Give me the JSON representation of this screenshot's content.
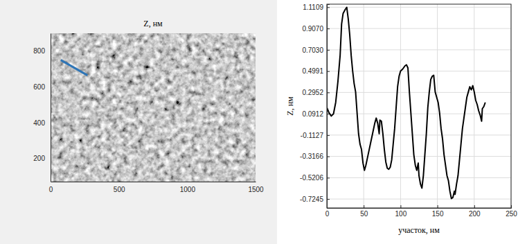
{
  "chart_data": [
    {
      "type": "image",
      "title": "Z, нм",
      "xlim": [
        0,
        1500
      ],
      "xticks": [
        0,
        500,
        1000,
        1500
      ],
      "ylim": [
        70,
        900
      ],
      "yticks": [
        200,
        400,
        600,
        800
      ],
      "series": [
        {
          "type": "line",
          "color": "#2e75b6",
          "x": [
            75,
            270
          ],
          "values": [
            750,
            665
          ]
        }
      ]
    },
    {
      "type": "line",
      "x_label": "участок, нм",
      "y_label": "Z, нм",
      "xlim": [
        0,
        250
      ],
      "xticks": [
        0,
        50,
        100,
        150,
        200,
        250
      ],
      "ylim": [
        -0.81,
        1.14
      ],
      "yticks": [
        -0.7245,
        -0.5206,
        -0.3166,
        -0.1127,
        0.0912,
        0.2952,
        0.4991,
        {
          "value": 0.703,
          "label": "0.7030"
        },
        {
          "value": 0.907,
          "label": "0.9070"
        },
        1.1109
      ],
      "grid": true,
      "x": [
        0,
        3,
        6,
        9,
        12,
        15,
        18,
        20,
        22,
        25,
        27,
        29,
        31,
        33,
        35,
        37,
        39,
        41,
        43,
        45,
        47,
        49,
        51,
        53,
        56,
        59,
        62,
        65,
        67,
        69,
        71,
        72,
        74,
        76,
        78,
        80,
        82,
        84,
        86,
        88,
        90,
        92,
        94,
        96,
        98,
        100,
        103,
        106,
        108,
        110,
        112,
        114,
        116,
        118,
        120,
        122,
        124,
        125,
        127,
        129,
        131,
        133,
        135,
        137,
        139,
        141,
        143,
        145,
        147,
        149,
        151,
        153,
        155,
        157,
        159,
        161,
        163,
        165,
        167,
        169,
        171,
        173,
        174,
        176,
        178,
        180,
        182,
        184,
        186,
        188,
        190,
        192,
        194,
        196,
        198,
        200,
        202,
        204,
        206,
        208,
        210,
        211,
        213,
        215
      ],
      "series": [
        {
          "color": "#000000",
          "values": [
            0.15,
            0.1,
            0.07,
            0.09,
            0.2,
            0.4,
            0.65,
            0.95,
            1.05,
            1.09,
            1.11,
            1.0,
            0.85,
            0.65,
            0.5,
            0.38,
            0.3,
            0.1,
            -0.1,
            -0.2,
            -0.25,
            -0.38,
            -0.45,
            -0.4,
            -0.3,
            -0.2,
            -0.1,
            0.0,
            0.05,
            0.0,
            -0.1,
            0.03,
            0.02,
            -0.1,
            -0.25,
            -0.37,
            -0.43,
            -0.44,
            -0.42,
            -0.35,
            -0.2,
            -0.05,
            0.15,
            0.35,
            0.45,
            0.5,
            0.52,
            0.55,
            0.56,
            0.53,
            0.3,
            0.1,
            -0.1,
            -0.3,
            -0.4,
            -0.45,
            -0.38,
            -0.5,
            -0.58,
            -0.62,
            -0.5,
            -0.3,
            -0.1,
            0.15,
            0.3,
            0.42,
            0.45,
            0.46,
            0.3,
            0.25,
            0.2,
            0.1,
            -0.05,
            -0.15,
            -0.3,
            -0.4,
            -0.5,
            -0.55,
            -0.65,
            -0.72,
            -0.71,
            -0.65,
            -0.68,
            -0.58,
            -0.5,
            -0.35,
            -0.2,
            -0.05,
            0.05,
            0.15,
            0.25,
            0.3,
            0.35,
            0.32,
            0.36,
            0.3,
            0.22,
            0.18,
            0.12,
            0.08,
            0.02,
            0.14,
            0.16,
            0.2
          ]
        }
      ]
    }
  ]
}
